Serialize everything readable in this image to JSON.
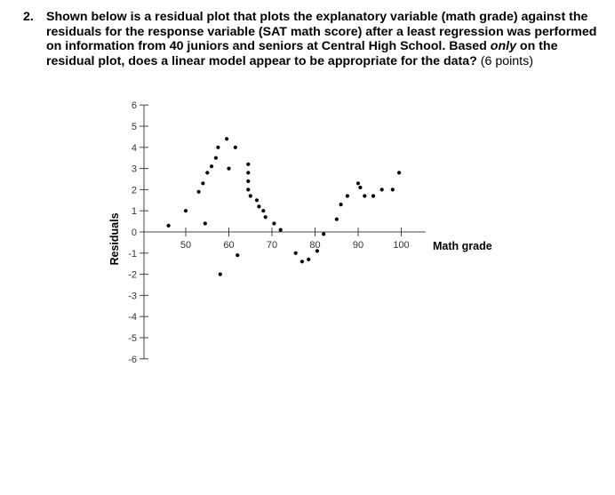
{
  "question": {
    "number": "2.",
    "text_before": "Shown below is a residual plot that plots the explanatory variable (math grade) against the residuals for the response variable (SAT math score) after a least regression was performed on information from 40 juniors and seniors at Central High School. Based ",
    "emphasis": "only",
    "text_after": " on the residual plot, does a linear model appear to be appropriate for the data?",
    "points": "(6 points)"
  },
  "chart_data": {
    "type": "scatter",
    "xlabel": "Math grade",
    "ylabel": "Residuals",
    "xlim": [
      40,
      105
    ],
    "ylim": [
      -6,
      6
    ],
    "x_ticks": [
      50,
      60,
      70,
      80,
      90,
      100
    ],
    "x_tick_labels": [
      "50",
      "60",
      "70",
      "80",
      "90",
      "100"
    ],
    "y_ticks": [
      6,
      5,
      4,
      3,
      2,
      1,
      0,
      -1,
      -2,
      -3,
      -4,
      -5,
      -6
    ],
    "y_tick_labels": [
      "6",
      "5",
      "4",
      "3",
      "2",
      "1",
      "0",
      "-1",
      "-2",
      "-3",
      "-4",
      "-5",
      "-6"
    ],
    "grid": false,
    "points": [
      {
        "x": 46,
        "y": 0.3
      },
      {
        "x": 50,
        "y": 1.0
      },
      {
        "x": 53,
        "y": 1.9
      },
      {
        "x": 54,
        "y": 2.3
      },
      {
        "x": 54.5,
        "y": 0.4
      },
      {
        "x": 55,
        "y": 2.8
      },
      {
        "x": 56,
        "y": 3.1
      },
      {
        "x": 57,
        "y": 3.5
      },
      {
        "x": 57.5,
        "y": 4.0
      },
      {
        "x": 58,
        "y": -2.0
      },
      {
        "x": 59.5,
        "y": 4.4
      },
      {
        "x": 60,
        "y": 3.0
      },
      {
        "x": 61.5,
        "y": 4.0
      },
      {
        "x": 62,
        "y": -1.1
      },
      {
        "x": 64.5,
        "y": 3.2
      },
      {
        "x": 64.5,
        "y": 2.8
      },
      {
        "x": 64.5,
        "y": 2.4
      },
      {
        "x": 64.5,
        "y": 2.0
      },
      {
        "x": 65,
        "y": 1.7
      },
      {
        "x": 66.5,
        "y": 1.5
      },
      {
        "x": 67,
        "y": 1.2
      },
      {
        "x": 68,
        "y": 1.0
      },
      {
        "x": 68.5,
        "y": 0.7
      },
      {
        "x": 70.5,
        "y": 0.4
      },
      {
        "x": 72,
        "y": 0.1
      },
      {
        "x": 75.5,
        "y": -1.0
      },
      {
        "x": 77,
        "y": -1.4
      },
      {
        "x": 78.5,
        "y": -1.3
      },
      {
        "x": 80.5,
        "y": -0.9
      },
      {
        "x": 82,
        "y": -0.1
      },
      {
        "x": 85,
        "y": 0.6
      },
      {
        "x": 86,
        "y": 1.3
      },
      {
        "x": 87.5,
        "y": 1.7
      },
      {
        "x": 90,
        "y": 2.3
      },
      {
        "x": 90.5,
        "y": 2.1
      },
      {
        "x": 91.5,
        "y": 1.7
      },
      {
        "x": 93.5,
        "y": 1.7
      },
      {
        "x": 95.5,
        "y": 2.0
      },
      {
        "x": 98,
        "y": 2.0
      },
      {
        "x": 99.5,
        "y": 2.8
      }
    ]
  }
}
